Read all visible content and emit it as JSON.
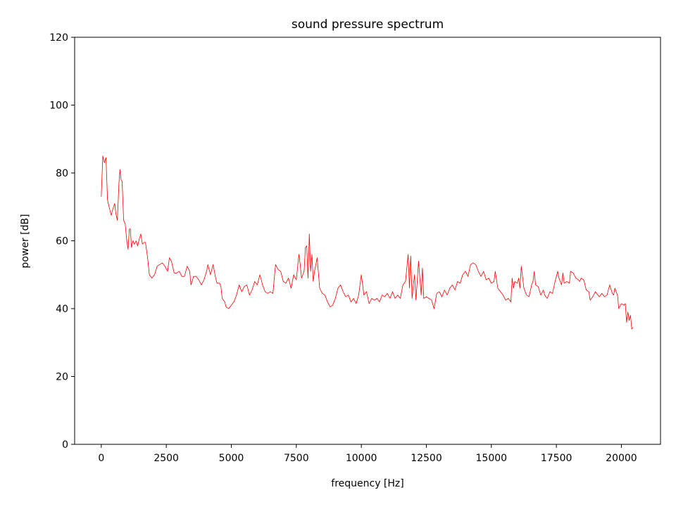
{
  "chart_data": {
    "type": "line",
    "title": "sound pressure spectrum",
    "xlabel": "frequency [Hz]",
    "ylabel": "power [dB]",
    "xlim": [
      -1024,
      21504
    ],
    "ylim": [
      0,
      120
    ],
    "xticks": [
      0,
      2500,
      5000,
      7500,
      10000,
      12500,
      15000,
      17500,
      20000
    ],
    "yticks": [
      0,
      20,
      40,
      60,
      80,
      100,
      120
    ],
    "grid": false,
    "line_color": "#ff0000",
    "series": [
      {
        "x": [
          0,
          60,
          120,
          180,
          240,
          300,
          380,
          450,
          520,
          560,
          620,
          680,
          720,
          760,
          800,
          860,
          920,
          980,
          1030,
          1080,
          1120,
          1160,
          1220,
          1280,
          1340,
          1400,
          1460,
          1520,
          1580,
          1640,
          1700,
          1780,
          1850,
          1950,
          2050,
          2150,
          2250,
          2350,
          2450,
          2550,
          2620,
          2700,
          2800,
          2900,
          3000,
          3100,
          3200,
          3300,
          3400,
          3450,
          3550,
          3650,
          3750,
          3850,
          3950,
          4050,
          4100,
          4200,
          4300,
          4400,
          4450,
          4550,
          4600,
          4650,
          4750,
          4800,
          4900,
          5000,
          5100,
          5200,
          5300,
          5400,
          5500,
          5600,
          5700,
          5800,
          5900,
          6000,
          6100,
          6200,
          6300,
          6400,
          6500,
          6600,
          6700,
          6800,
          6900,
          7000,
          7100,
          7200,
          7300,
          7400,
          7500,
          7600,
          7650,
          7700,
          7800,
          7850,
          7900,
          7950,
          8000,
          8050,
          8100,
          8150,
          8200,
          8300,
          8400,
          8500,
          8600,
          8700,
          8800,
          8900,
          9000,
          9100,
          9200,
          9300,
          9400,
          9500,
          9600,
          9700,
          9800,
          9900,
          10000,
          10050,
          10100,
          10200,
          10300,
          10400,
          10500,
          10600,
          10700,
          10800,
          10900,
          11000,
          11100,
          11200,
          11300,
          11400,
          11500,
          11600,
          11700,
          11800,
          11850,
          11900,
          11950,
          12000,
          12050,
          12100,
          12200,
          12300,
          12350,
          12400,
          12500,
          12600,
          12700,
          12800,
          12900,
          13000,
          13100,
          13200,
          13300,
          13400,
          13500,
          13600,
          13700,
          13800,
          13900,
          14000,
          14100,
          14200,
          14300,
          14400,
          14500,
          14600,
          14700,
          14800,
          14900,
          15000,
          15100,
          15150,
          15250,
          15350,
          15450,
          15550,
          15650,
          15750,
          15800,
          15850,
          15900,
          16000,
          16050,
          16100,
          16150,
          16250,
          16350,
          16450,
          16550,
          16600,
          16650,
          16700,
          16800,
          16900,
          17000,
          17050,
          17150,
          17250,
          17350,
          17450,
          17550,
          17600,
          17700,
          17750,
          17800,
          17900,
          18000,
          18050,
          18150,
          18250,
          18350,
          18400,
          18450,
          18550,
          18650,
          18750,
          18800,
          18900,
          19000,
          19100,
          19150,
          19250,
          19350,
          19450,
          19550,
          19650,
          19700,
          19750,
          19850,
          19900,
          20000,
          20100,
          20150,
          20200,
          20250,
          20300,
          20350,
          20400,
          20450
        ],
        "y": [
          73,
          85,
          83,
          84.5,
          72,
          70,
          67.5,
          69.5,
          71,
          68,
          66,
          77,
          81,
          78,
          77.5,
          66,
          65,
          60,
          57.5,
          63.5,
          63.5,
          58,
          60,
          59,
          60,
          58.5,
          60.5,
          62,
          59,
          59.5,
          59.5,
          55,
          50,
          49,
          50,
          52.5,
          53,
          53.5,
          52.5,
          51,
          55,
          54,
          50.5,
          50.5,
          51,
          49.5,
          49.5,
          52.5,
          51,
          47,
          49.5,
          49.5,
          48.5,
          47,
          48.5,
          51,
          53,
          50,
          53,
          49,
          47.5,
          47.5,
          46.5,
          43,
          42,
          40.5,
          40,
          41,
          42,
          44,
          47,
          45,
          46.5,
          47,
          44,
          45.5,
          48,
          47,
          50,
          47,
          45,
          44.5,
          45,
          44.5,
          53,
          51.5,
          51,
          48,
          47.5,
          49,
          46,
          50,
          48.5,
          56,
          53,
          49,
          51,
          58,
          58.5,
          49,
          62,
          51,
          56,
          48,
          51,
          55,
          46,
          44.5,
          44,
          42,
          40.5,
          41,
          43,
          46,
          47,
          45,
          43.5,
          44,
          42,
          43,
          41.5,
          44,
          50,
          47,
          44,
          45,
          41.5,
          43,
          42.5,
          43,
          42,
          44,
          43.5,
          44.5,
          43,
          45,
          43,
          44,
          43,
          47,
          48,
          56,
          46,
          55.5,
          43,
          47,
          50,
          42.5,
          54,
          44,
          52,
          43,
          43.5,
          43,
          42.5,
          40,
          44.5,
          45,
          43.5,
          45.5,
          44,
          46,
          47,
          45.5,
          48,
          47.5,
          50,
          51,
          49.5,
          53,
          53.5,
          53,
          51,
          49.5,
          51,
          48.5,
          49,
          47.5,
          48,
          51,
          46,
          45,
          44,
          42.5,
          43,
          42,
          49,
          46,
          48,
          47.5,
          49,
          46,
          52.5,
          46,
          44,
          43.5,
          47,
          48,
          51,
          47,
          46.5,
          44,
          45.5,
          44,
          43,
          45,
          44.5,
          48,
          51,
          49,
          47,
          50.5,
          47.5,
          48,
          47.5,
          51,
          50.5,
          49,
          48.5,
          48,
          49,
          48.5,
          45.5,
          45,
          42.5,
          43.5,
          45,
          44,
          43.5,
          44.5,
          43.5,
          44,
          47,
          44.5,
          44,
          46,
          44,
          40,
          41.5,
          41,
          41.5,
          36,
          39,
          36.5,
          38,
          34,
          34.5
        ]
      }
    ]
  }
}
